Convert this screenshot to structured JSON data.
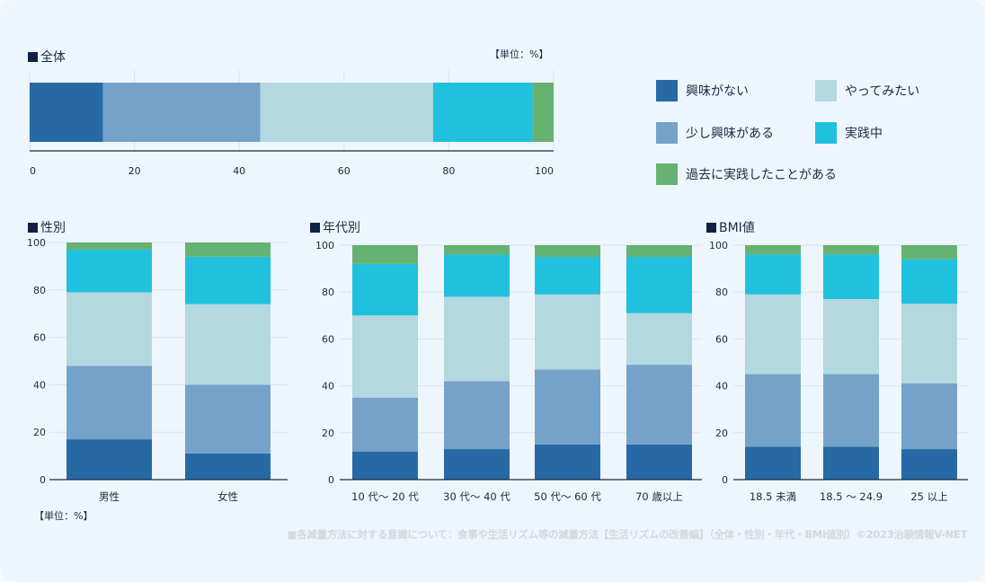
{
  "colors": {
    "series": [
      "#2669a5",
      "#75a2c8",
      "#b3d8e0",
      "#20c1de",
      "#66b273"
    ],
    "grid": "#dbe3ea",
    "axis": "#1b2a44",
    "title_square": "#0f2145",
    "footer": "#d3d9df"
  },
  "legend": [
    {
      "label": "興味がない"
    },
    {
      "label": "やってみたい"
    },
    {
      "label": "少し興味がある"
    },
    {
      "label": "実践中"
    },
    {
      "label": "過去に実践したことがある"
    }
  ],
  "unit_label": "【単位：%】",
  "footer": "■各減量方法に対する意識について：食事や生活リズム等の減量方法【生活リズムの改善編】（全体・性別・年代・BMI値別）©2023治験情報V-NET",
  "chart_data": [
    {
      "id": "overall",
      "type": "bar",
      "orientation": "horizontal",
      "stacked": true,
      "title": "全体",
      "unit": "【単位：%】",
      "categories": [
        "全体"
      ],
      "xlim": [
        0,
        100
      ],
      "ticks": [
        "0",
        "20",
        "40",
        "60",
        "80",
        "100"
      ],
      "grid": true,
      "series": [
        {
          "name": "興味がない",
          "values": [
            14
          ]
        },
        {
          "name": "少し興味がある",
          "values": [
            30
          ]
        },
        {
          "name": "やってみたい",
          "values": [
            33
          ]
        },
        {
          "name": "実践中",
          "values": [
            19
          ]
        },
        {
          "name": "過去に実践したことがある",
          "values": [
            4
          ]
        }
      ]
    },
    {
      "id": "gender",
      "type": "bar",
      "stacked": true,
      "title": "性別",
      "unit": "【単位：%】",
      "categories": [
        "男性",
        "女性"
      ],
      "ylim": [
        0,
        100
      ],
      "ticks": [
        "0",
        "20",
        "40",
        "60",
        "80",
        "100"
      ],
      "grid": true,
      "series": [
        {
          "name": "興味がない",
          "values": [
            17,
            11
          ]
        },
        {
          "name": "少し興味がある",
          "values": [
            31,
            29
          ]
        },
        {
          "name": "やってみたい",
          "values": [
            31,
            34
          ]
        },
        {
          "name": "実践中",
          "values": [
            18,
            20
          ]
        },
        {
          "name": "過去に実践したことがある",
          "values": [
            3,
            6
          ]
        }
      ]
    },
    {
      "id": "age",
      "type": "bar",
      "stacked": true,
      "title": "年代別",
      "categories": [
        "10 代～ 20 代",
        "30 代～ 40 代",
        "50 代～ 60 代",
        "70 歳以上"
      ],
      "ylim": [
        0,
        100
      ],
      "ticks": [
        "0",
        "20",
        "40",
        "60",
        "80",
        "100"
      ],
      "grid": true,
      "series": [
        {
          "name": "興味がない",
          "values": [
            12,
            13,
            15,
            15
          ]
        },
        {
          "name": "少し興味がある",
          "values": [
            23,
            29,
            32,
            34
          ]
        },
        {
          "name": "やってみたい",
          "values": [
            35,
            36,
            32,
            22
          ]
        },
        {
          "name": "実践中",
          "values": [
            22,
            18,
            16,
            24
          ]
        },
        {
          "name": "過去に実践したことがある",
          "values": [
            8,
            4,
            5,
            5
          ]
        }
      ]
    },
    {
      "id": "bmi",
      "type": "bar",
      "stacked": true,
      "title": "BMI値",
      "categories": [
        "18.5 未満",
        "18.5 ～ 24.9",
        "25 以上"
      ],
      "ylim": [
        0,
        100
      ],
      "ticks": [
        "0",
        "20",
        "40",
        "60",
        "80",
        "100"
      ],
      "grid": true,
      "series": [
        {
          "name": "興味がない",
          "values": [
            14,
            14,
            13
          ]
        },
        {
          "name": "少し興味がある",
          "values": [
            31,
            31,
            28
          ]
        },
        {
          "name": "やってみたい",
          "values": [
            34,
            32,
            34
          ]
        },
        {
          "name": "実践中",
          "values": [
            17,
            19,
            19
          ]
        },
        {
          "name": "過去に実践したことがある",
          "values": [
            4,
            4,
            6
          ]
        }
      ]
    }
  ]
}
